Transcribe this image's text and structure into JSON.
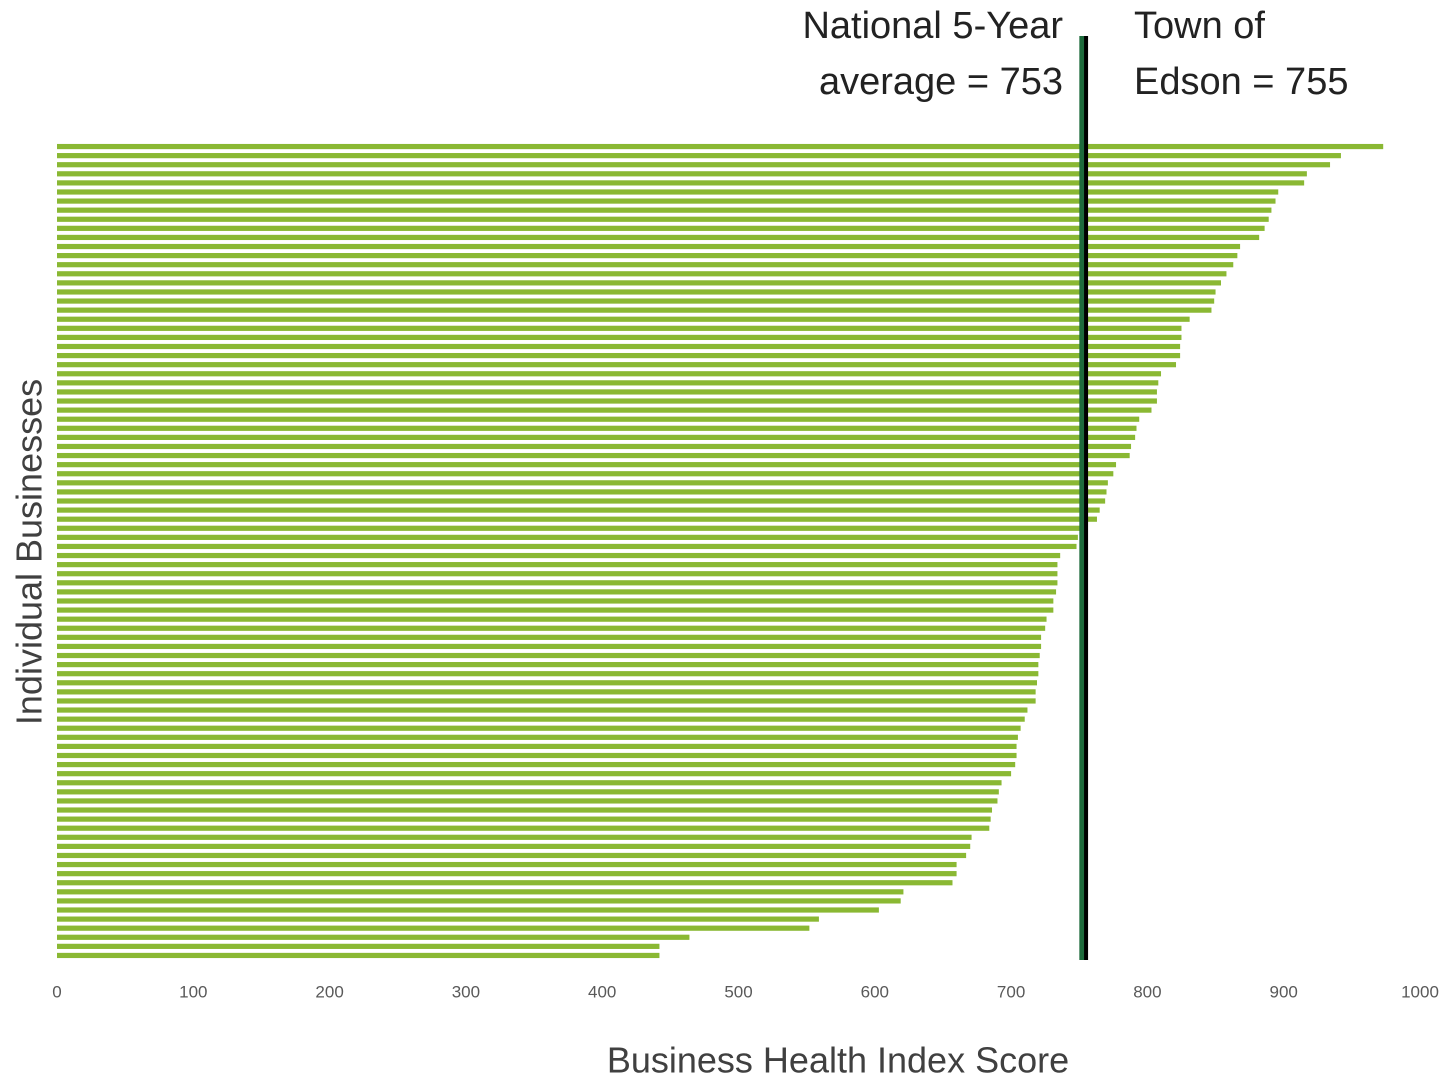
{
  "chart_data": {
    "type": "hbar",
    "xlabel": "Business Health Index Score",
    "ylabel": "Individual Businesses",
    "color": "#8ab833",
    "categories": [
      null,
      null,
      null,
      null,
      null,
      null,
      null,
      null,
      null,
      null,
      null,
      null,
      null,
      null,
      null,
      null,
      null,
      null,
      null,
      null,
      null,
      null,
      null,
      null,
      null,
      null,
      null,
      null,
      null,
      null,
      null,
      null,
      null,
      null,
      null,
      null,
      null,
      null,
      null,
      null,
      null,
      null,
      null,
      null,
      null,
      null,
      null,
      null,
      null,
      null,
      null,
      null,
      null,
      null,
      null,
      null,
      null,
      null,
      null,
      null,
      null,
      null,
      null,
      null,
      null,
      null,
      null,
      null,
      null,
      null,
      null,
      null,
      null,
      null,
      null,
      null,
      null,
      null,
      null,
      null,
      null,
      null,
      null,
      null,
      null,
      null,
      null,
      null,
      null,
      null
    ],
    "values": [
      973,
      942,
      934,
      917,
      915,
      896,
      894,
      891,
      889,
      886,
      882,
      868,
      866,
      863,
      858,
      854,
      850,
      849,
      847,
      831,
      825,
      825,
      824,
      824,
      821,
      810,
      808,
      807,
      807,
      803,
      794,
      792,
      791,
      788,
      787,
      777,
      775,
      771,
      770,
      769,
      765,
      763,
      751,
      749,
      748,
      736,
      734,
      734,
      734,
      733,
      731,
      731,
      726,
      725,
      722,
      722,
      721,
      720,
      720,
      719,
      718,
      718,
      712,
      710,
      707,
      705,
      704,
      704,
      703,
      700,
      693,
      691,
      690,
      686,
      685,
      684,
      671,
      670,
      667,
      660,
      660,
      657,
      621,
      619,
      603,
      559,
      552,
      464,
      442,
      442
    ],
    "xlim": [
      0,
      1000
    ],
    "xticks": [
      0,
      100,
      200,
      300,
      400,
      500,
      600,
      700,
      800,
      900,
      1000
    ],
    "grid": false,
    "reference_lines": [
      {
        "value": 753,
        "color": "#1e6b3c",
        "label": [
          "National 5-Year",
          "average = 753"
        ],
        "side": "left"
      },
      {
        "value": 755,
        "color": "#000000",
        "label": [
          "Town of",
          "Edson = 755"
        ],
        "side": "right"
      }
    ]
  }
}
